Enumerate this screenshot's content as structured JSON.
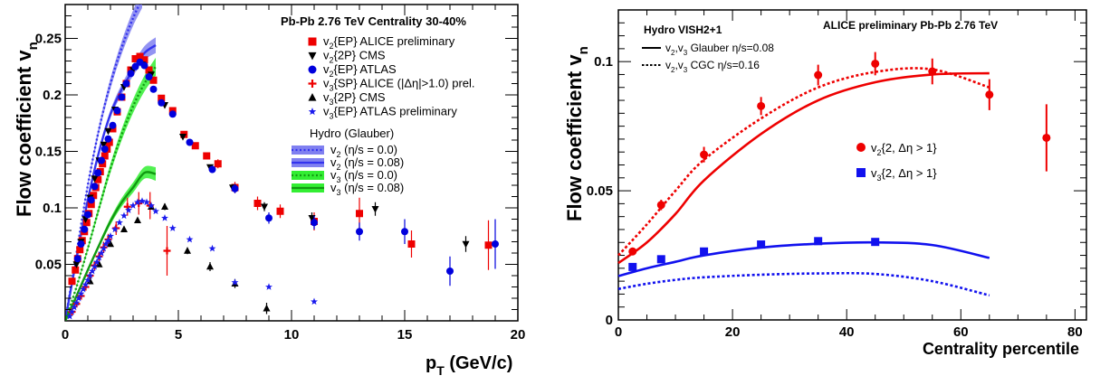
{
  "chart_data": [
    {
      "type": "scatter",
      "title": "Pb-Pb 2.76 TeV Centrality 30-40%",
      "xlabel": "p_T (GeV/c)",
      "ylabel": "Flow coefficient v_n",
      "xlim": [
        0,
        20
      ],
      "ylim": [
        0,
        0.28
      ],
      "x_ticks": [
        "0",
        "5",
        "10",
        "15",
        "20"
      ],
      "y_ticks": [
        "0.05",
        "0.1",
        "0.15",
        "0.2",
        "0.25"
      ],
      "legend_data": [
        {
          "sub": "2",
          "text": "{EP} ALICE preliminary"
        },
        {
          "sub": "2",
          "text": "{2P} CMS"
        },
        {
          "sub": "2",
          "text": "{EP} ATLAS"
        },
        {
          "sub": "3",
          "text": "{SP} ALICE (|Δη|>1.0) prel."
        },
        {
          "sub": "3",
          "text": "{2P} CMS"
        },
        {
          "sub": "3",
          "text": "{EP} ATLAS preliminary"
        }
      ],
      "legend_hydro_title": "Hydro (Glauber)",
      "legend_hydro": [
        {
          "sub": "2",
          "text": " (η/s = 0.0)"
        },
        {
          "sub": "2",
          "text": " (η/s = 0.08)"
        },
        {
          "sub": "3",
          "text": " (η/s = 0.0)"
        },
        {
          "sub": "3",
          "text": " (η/s = 0.08)"
        }
      ],
      "colors": {
        "alice": "#ee0000",
        "cms": "#000000",
        "atlas": "#0000dd",
        "atlas_v3": "#1a1aee",
        "hydro_v2": "#3333ee",
        "hydro_v2_band": "#8080f0",
        "hydro_v3": "#119911",
        "hydro_v3_band": "#33ee33"
      },
      "series": [
        {
          "name": "v2{EP} ALICE preliminary",
          "marker": "square",
          "color": "#ee0000",
          "x": [
            0.3,
            0.45,
            0.55,
            0.65,
            0.75,
            0.85,
            0.95,
            1.05,
            1.15,
            1.25,
            1.35,
            1.45,
            1.55,
            1.65,
            1.75,
            1.85,
            1.95,
            2.1,
            2.3,
            2.5,
            2.7,
            2.9,
            3.1,
            3.3,
            3.5,
            3.7,
            3.9,
            4.25,
            4.75,
            5.25,
            5.75,
            6.25,
            6.75,
            7.5,
            8.5,
            9.5,
            11.0,
            13.0,
            15.3,
            18.7
          ],
          "y": [
            0.035,
            0.045,
            0.055,
            0.063,
            0.071,
            0.079,
            0.087,
            0.095,
            0.103,
            0.111,
            0.118,
            0.125,
            0.132,
            0.139,
            0.146,
            0.152,
            0.158,
            0.17,
            0.185,
            0.198,
            0.21,
            0.222,
            0.232,
            0.234,
            0.231,
            0.222,
            0.213,
            0.197,
            0.186,
            0.165,
            0.155,
            0.146,
            0.139,
            0.118,
            0.104,
            0.097,
            0.088,
            0.095,
            0.068,
            0.067
          ],
          "err": [
            0,
            0,
            0,
            0,
            0,
            0,
            0,
            0,
            0,
            0,
            0,
            0,
            0,
            0,
            0,
            0,
            0,
            0,
            0,
            0,
            0,
            0,
            0,
            0,
            0,
            0,
            0,
            0,
            0,
            0,
            0,
            0.003,
            0.004,
            0.005,
            0.006,
            0.006,
            0.008,
            0.014,
            0.012,
            0.022
          ]
        },
        {
          "name": "v2{2P} CMS",
          "marker": "triangle-down",
          "color": "#000000",
          "x": [
            0.5,
            0.7,
            0.9,
            1.1,
            1.3,
            1.5,
            1.7,
            1.9,
            2.2,
            2.6,
            3.0,
            3.4,
            3.8,
            4.4,
            5.2,
            6.4,
            7.4,
            8.8,
            10.9,
            13.7,
            17.7
          ],
          "y": [
            0.05,
            0.07,
            0.09,
            0.109,
            0.126,
            0.142,
            0.156,
            0.168,
            0.187,
            0.207,
            0.222,
            0.227,
            0.218,
            0.191,
            0.163,
            0.136,
            0.118,
            0.101,
            0.091,
            0.099,
            0.068
          ],
          "err": [
            0,
            0,
            0,
            0,
            0,
            0,
            0,
            0,
            0,
            0,
            0,
            0,
            0,
            0,
            0,
            0,
            0.003,
            0.004,
            0.005,
            0.006,
            0.007
          ]
        },
        {
          "name": "v2{EP} ATLAS",
          "marker": "circle",
          "color": "#0000dd",
          "x": [
            0.55,
            0.7,
            0.85,
            1.0,
            1.15,
            1.3,
            1.45,
            1.6,
            1.75,
            1.9,
            2.1,
            2.3,
            2.5,
            2.7,
            2.9,
            3.1,
            3.3,
            3.5,
            3.7,
            3.9,
            4.25,
            4.75,
            5.5,
            6.5,
            7.5,
            9.0,
            11.0,
            13.0,
            15.0,
            17.0,
            19.0
          ],
          "y": [
            0.055,
            0.068,
            0.081,
            0.094,
            0.107,
            0.119,
            0.131,
            0.142,
            0.152,
            0.161,
            0.173,
            0.186,
            0.198,
            0.21,
            0.219,
            0.225,
            0.229,
            0.226,
            0.216,
            0.205,
            0.193,
            0.183,
            0.158,
            0.134,
            0.117,
            0.091,
            0.087,
            0.079,
            0.079,
            0.044,
            0.068
          ],
          "err": [
            0,
            0,
            0,
            0,
            0,
            0,
            0,
            0,
            0,
            0,
            0,
            0,
            0,
            0,
            0,
            0,
            0,
            0,
            0,
            0,
            0,
            0,
            0,
            0.003,
            0.004,
            0.005,
            0.006,
            0.008,
            0.011,
            0.013,
            0.022
          ]
        },
        {
          "name": "v3{SP} ALICE (|Δη|>1.0) prel.",
          "marker": "plus",
          "color": "#ee0000",
          "x": [
            0.3,
            0.5,
            0.7,
            0.9,
            1.1,
            1.3,
            1.5,
            1.7,
            1.9,
            2.25,
            2.75,
            3.25,
            3.75,
            4.5
          ],
          "y": [
            0.008,
            0.015,
            0.022,
            0.03,
            0.04,
            0.049,
            0.057,
            0.065,
            0.072,
            0.082,
            0.101,
            0.104,
            0.102,
            0.062
          ],
          "err": [
            0.001,
            0.002,
            0.002,
            0.003,
            0.003,
            0.004,
            0.004,
            0.005,
            0.005,
            0.006,
            0.008,
            0.01,
            0.012,
            0.022
          ]
        },
        {
          "name": "v3{2P} CMS",
          "marker": "triangle",
          "color": "#000000",
          "x": [
            1.1,
            1.5,
            2.0,
            2.6,
            3.2,
            3.8,
            4.4,
            5.4,
            6.4,
            7.5,
            8.9
          ],
          "y": [
            0.035,
            0.05,
            0.068,
            0.081,
            0.089,
            0.101,
            0.101,
            0.062,
            0.048,
            0.033,
            0.011
          ],
          "err": [
            0,
            0,
            0,
            0,
            0,
            0,
            0.003,
            0.003,
            0.004,
            0.004,
            0.005
          ]
        },
        {
          "name": "v3{EP} ATLAS preliminary",
          "marker": "star",
          "color": "#1a1aee",
          "x": [
            0.2,
            0.3,
            0.4,
            0.5,
            0.6,
            0.7,
            0.8,
            0.9,
            1.0,
            1.1,
            1.2,
            1.3,
            1.4,
            1.5,
            1.6,
            1.7,
            1.8,
            1.9,
            2.0,
            2.2,
            2.4,
            2.6,
            2.8,
            3.0,
            3.2,
            3.4,
            3.6,
            3.8,
            4.0,
            4.4,
            4.75,
            5.5,
            6.5,
            7.5,
            9.0,
            11.0
          ],
          "y": [
            0.004,
            0.008,
            0.012,
            0.016,
            0.02,
            0.024,
            0.028,
            0.032,
            0.036,
            0.04,
            0.044,
            0.048,
            0.052,
            0.056,
            0.06,
            0.064,
            0.068,
            0.071,
            0.075,
            0.081,
            0.087,
            0.093,
            0.098,
            0.102,
            0.105,
            0.106,
            0.105,
            0.102,
            0.097,
            0.091,
            0.082,
            0.072,
            0.064,
            0.034,
            0.03,
            0.017
          ]
        }
      ],
      "hydro_curves": [
        {
          "name": "v2 (η/s = 0.0)",
          "style": "dotted",
          "color": "#3333ee",
          "x": [
            0,
            0.5,
            1,
            1.5,
            2,
            2.5,
            3,
            3.4
          ],
          "y": [
            0,
            0.06,
            0.12,
            0.17,
            0.21,
            0.242,
            0.268,
            0.285
          ],
          "band": 0.008
        },
        {
          "name": "v2 (η/s = 0.08)",
          "style": "solid",
          "color": "#3333ee",
          "x": [
            0,
            0.5,
            1,
            1.5,
            2,
            2.5,
            3,
            3.5,
            4
          ],
          "y": [
            0,
            0.055,
            0.107,
            0.15,
            0.183,
            0.205,
            0.222,
            0.237,
            0.244
          ],
          "band": 0.007
        },
        {
          "name": "v3 (η/s = 0.0)",
          "style": "dotted",
          "color": "#119911",
          "x": [
            0,
            0.5,
            1,
            1.5,
            2,
            2.5,
            3,
            3.5,
            4
          ],
          "y": [
            0,
            0.03,
            0.064,
            0.1,
            0.135,
            0.165,
            0.19,
            0.21,
            0.225
          ],
          "band": 0.008
        },
        {
          "name": "v3 (η/s = 0.08)",
          "style": "solid",
          "color": "#119911",
          "x": [
            0,
            0.5,
            1,
            1.5,
            2,
            2.5,
            3,
            3.5,
            4
          ],
          "y": [
            0,
            0.022,
            0.045,
            0.067,
            0.088,
            0.105,
            0.118,
            0.131,
            0.13
          ],
          "band": 0.006
        }
      ]
    },
    {
      "type": "scatter",
      "title": "ALICE preliminary Pb-Pb 2.76 TeV",
      "subtitle": "Hydro VISH2+1",
      "xlabel": "Centrality percentile",
      "ylabel": "Flow coefficient v_n",
      "xlim": [
        0,
        82
      ],
      "ylim": [
        0,
        0.12
      ],
      "x_ticks": [
        "0",
        "20",
        "40",
        "60",
        "80"
      ],
      "y_ticks": [
        "0",
        "0.05",
        "0.1"
      ],
      "legend_model": [
        {
          "text": ",v",
          "pre": "v",
          "sub1": "2",
          "sub2": "3",
          "post": " Glauber η/s=0.08",
          "style": "solid"
        },
        {
          "text": ",v",
          "pre": "v",
          "sub1": "2",
          "sub2": "3",
          "post": " CGC η/s=0.16",
          "style": "dotted"
        }
      ],
      "legend_data": [
        {
          "sub": "2",
          "text": "{2, Δη > 1}"
        },
        {
          "sub": "3",
          "text": "{2, Δη > 1}"
        }
      ],
      "series": [
        {
          "name": "v2{2, Δη > 1}",
          "marker": "circle",
          "color": "#ee0000",
          "x": [
            2.5,
            7.5,
            15,
            25,
            35,
            45,
            55,
            65,
            75
          ],
          "y": [
            0.0265,
            0.0445,
            0.064,
            0.0828,
            0.0948,
            0.0992,
            0.0962,
            0.0872,
            0.0705
          ],
          "err": [
            0.0015,
            0.002,
            0.003,
            0.0035,
            0.004,
            0.0045,
            0.005,
            0.006,
            0.013
          ]
        },
        {
          "name": "v3{2, Δη > 1}",
          "marker": "square",
          "color": "#1111ee",
          "x": [
            2.5,
            7.5,
            15,
            25,
            35,
            45
          ],
          "y": [
            0.0205,
            0.0235,
            0.0265,
            0.0292,
            0.0305,
            0.0302
          ],
          "err": [
            0,
            0,
            0,
            0,
            0,
            0
          ]
        }
      ],
      "model_curves": [
        {
          "name": "v2 Glauber η/s=0.08",
          "style": "solid",
          "color": "#ee0000",
          "x": [
            0,
            5,
            10,
            15,
            25,
            35,
            45,
            55,
            65
          ],
          "y": [
            0.022,
            0.03,
            0.041,
            0.054,
            0.072,
            0.085,
            0.092,
            0.095,
            0.0955
          ]
        },
        {
          "name": "v2 CGC η/s=0.16",
          "style": "dotted",
          "color": "#ee0000",
          "x": [
            0,
            5,
            10,
            15,
            25,
            35,
            45,
            55,
            65
          ],
          "y": [
            0.025,
            0.037,
            0.05,
            0.062,
            0.078,
            0.09,
            0.096,
            0.097,
            0.09
          ]
        },
        {
          "name": "v3 Glauber η/s=0.08",
          "style": "solid",
          "color": "#1111ee",
          "x": [
            0,
            5,
            10,
            15,
            25,
            35,
            45,
            55,
            65
          ],
          "y": [
            0.017,
            0.02,
            0.0225,
            0.025,
            0.028,
            0.0295,
            0.03,
            0.029,
            0.024
          ]
        },
        {
          "name": "v3 CGC η/s=0.16",
          "style": "dotted",
          "color": "#1111ee",
          "x": [
            0,
            5,
            10,
            15,
            25,
            35,
            45,
            55,
            65
          ],
          "y": [
            0.012,
            0.014,
            0.0155,
            0.0165,
            0.0175,
            0.018,
            0.0178,
            0.015,
            0.0095
          ]
        }
      ]
    }
  ]
}
